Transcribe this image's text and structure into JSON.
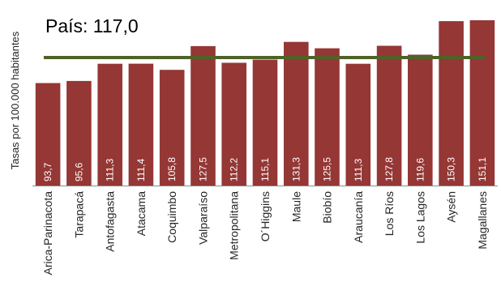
{
  "chart_data": {
    "type": "bar",
    "title": "",
    "xlabel": "",
    "ylabel": "Tasas por 100.000 habitantes",
    "ylim": [
      0,
      160
    ],
    "grid": false,
    "categories": [
      "Arica-Parinacota",
      "Tarapacá",
      "Antofagasta",
      "Atacama",
      "Coquimbo",
      "Valparaíso",
      "Metropolitana",
      "O´Higgins",
      "Maule",
      "Biobío",
      "Araucanía",
      "Los Ríos",
      "Los Lagos",
      "Aysén",
      "Magallanes"
    ],
    "series": [
      {
        "values": [
          93.7,
          95.6,
          111.3,
          111.4,
          105.8,
          127.5,
          112.2,
          115.1,
          131.3,
          125.5,
          111.3,
          127.8,
          119.6,
          150.3,
          151.1
        ],
        "value_labels": [
          "93,7",
          "95,6",
          "111,3",
          "111,4",
          "105,8",
          "127,5",
          "112,2",
          "115,1",
          "131,3",
          "125,5",
          "111,3",
          "127,8",
          "119,6",
          "150,3",
          "151,1"
        ]
      }
    ],
    "reference_line": {
      "label": "País: 117,0",
      "value": 117.0
    },
    "colors": {
      "bar": "#953735",
      "bar_label": "#ffffff",
      "reference_line": "#4f6228",
      "text": "#262626"
    }
  }
}
